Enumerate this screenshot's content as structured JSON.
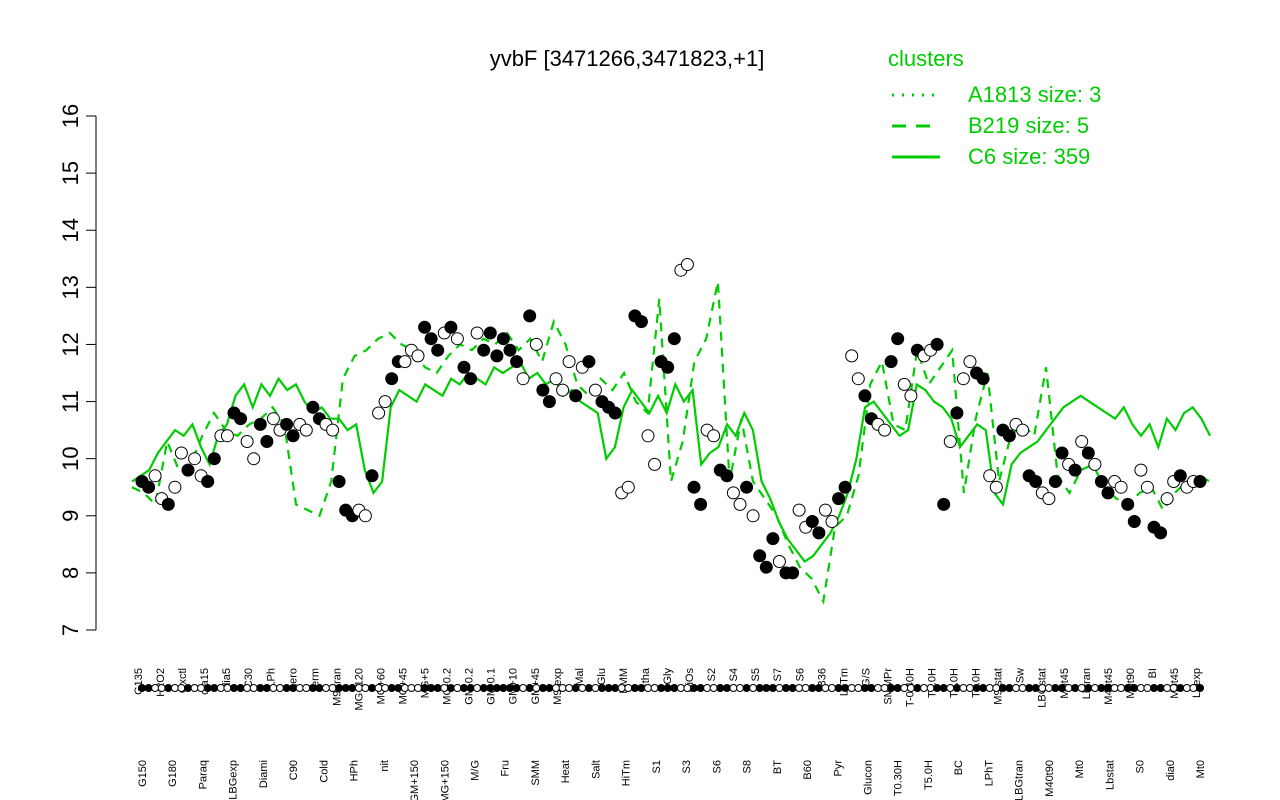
{
  "chart_data": {
    "type": "line",
    "title": "yvbF [3471266,3471823,+1]",
    "xlabel": "",
    "ylabel": "",
    "ylim": [
      7,
      16
    ],
    "yticks": [
      7,
      8,
      9,
      10,
      11,
      12,
      13,
      14,
      15,
      16
    ],
    "grid": false,
    "legend": {
      "title": "clusters",
      "placement": "top-right",
      "entries": [
        {
          "label": "A1813 size: 3",
          "style": "dotted"
        },
        {
          "label": "B219 size: 5",
          "style": "dashed"
        },
        {
          "label": "C6 size: 359",
          "style": "solid"
        }
      ]
    },
    "colors": {
      "line": "#00cc00",
      "point_fill_white": "#ffffff",
      "point_fill_black": "#000000",
      "axis": "#000000"
    },
    "xtick_labels_top": [
      "G135",
      "H2O2",
      "Oxctl",
      "dia15",
      "dia5",
      "C30",
      "LPh",
      "aero",
      "ferm",
      "M9-tran",
      "MG+120",
      "MG+60",
      "MG+45",
      "MG+5",
      "MG-0.2",
      "GM-0.2",
      "GM-0.1",
      "GM+10",
      "GM+45",
      "M9-exp",
      "Mal",
      "Glu",
      "BMM",
      "Etha",
      "Gly",
      "HiOs",
      "S2",
      "S4",
      "S5",
      "S7",
      "S6",
      "B36",
      "LoTm",
      "G/S",
      "SMMPr",
      "T-0.40H",
      "T1.0H",
      "T2.0H",
      "T4.0H",
      "M9-stat",
      "Sw",
      "LBGstat",
      "M0t45",
      "Lbtran",
      "M40t45",
      "M0t90",
      "BI",
      "M0t45",
      "Lbexp"
    ],
    "xtick_labels_bottom": [
      "G150",
      "G180",
      "Paraq",
      "LBGexp",
      "Diami",
      "C90",
      "Cold",
      "HPh",
      "nit",
      "GM+150",
      "MG+150",
      "M/G",
      "Fru",
      "SMM",
      "Heat",
      "Salt",
      "HiTm",
      "S1",
      "S3",
      "S6",
      "S8",
      "BT",
      "B60",
      "Pyr",
      "Glucon",
      "T0.30H",
      "T5.0H",
      "BC",
      "LPhT",
      "LBGtran",
      "M40t90",
      "Mt0",
      "Lbstat",
      "S0",
      "dia0",
      "Mt0"
    ],
    "series": [
      {
        "name": "C6 size: 359",
        "style": "solid",
        "values": [
          9.6,
          9.7,
          9.8,
          10.1,
          10.3,
          10.5,
          10.4,
          10.6,
          10.2,
          9.9,
          10.4,
          10.6,
          11.1,
          11.3,
          10.9,
          11.3,
          11.1,
          11.4,
          11.2,
          11.3,
          11.0,
          10.8,
          10.9,
          10.7,
          10.7,
          10.5,
          10.6,
          9.8,
          9.4,
          9.6,
          10.9,
          11.2,
          11.1,
          11.0,
          11.3,
          11.2,
          11.1,
          11.4,
          11.3,
          11.5,
          11.4,
          11.3,
          11.6,
          11.5,
          11.6,
          11.7,
          11.4,
          11.5,
          11.3,
          11.4,
          11.1,
          11.2,
          11.0,
          10.9,
          10.8,
          10.0,
          10.2,
          10.9,
          11.2,
          11.0,
          10.8,
          11.1,
          10.8,
          11.3,
          11.0,
          11.2,
          9.9,
          10.1,
          10.2,
          10.6,
          10.4,
          10.8,
          10.5,
          9.6,
          9.3,
          8.9,
          8.6,
          8.4,
          8.2,
          8.3,
          8.5,
          8.7,
          9.0,
          9.4,
          10.0,
          10.9,
          11.0,
          10.8,
          10.6,
          10.4,
          10.5,
          11.3,
          11.2,
          11.0,
          10.9,
          10.7,
          10.2,
          10.4,
          10.6,
          10.5,
          9.4,
          9.2,
          9.9,
          10.1,
          10.2,
          10.3,
          10.5,
          10.7,
          10.9,
          11.0,
          11.1,
          11.0,
          10.9,
          10.8,
          10.7,
          10.9,
          10.6,
          10.4,
          10.6,
          10.2,
          10.7,
          10.5,
          10.8,
          10.9,
          10.7,
          10.4
        ]
      },
      {
        "name": "B219 size: 5",
        "style": "dashed",
        "values": [
          9.5,
          9.4,
          9.2,
          10.3,
          9.8,
          9.9,
          10.4,
          10.8,
          10.5,
          10.4,
          10.6,
          10.7,
          10.9,
          10.6,
          9.2,
          9.1,
          9.0,
          9.6,
          11.4,
          11.8,
          11.9,
          12.1,
          12.2,
          12.0,
          11.9,
          11.6,
          11.5,
          11.8,
          12.0,
          11.9,
          12.1,
          12.0,
          12.2,
          11.9,
          12.1,
          11.7,
          12.4,
          12.0,
          11.3,
          11.1,
          11.4,
          11.2,
          11.5,
          11.0,
          10.8,
          12.8,
          9.6,
          10.3,
          11.7,
          12.1,
          13.1,
          9.6,
          10.7,
          9.6,
          9.3,
          9.0,
          8.5,
          8.1,
          7.9,
          7.5,
          8.8,
          9.0,
          9.7,
          11.3,
          11.7,
          10.6,
          10.5,
          11.9,
          11.3,
          11.6,
          11.9,
          9.4,
          10.7,
          11.5,
          9.6,
          10.4,
          10.6,
          10.4,
          11.6,
          9.7,
          9.4,
          9.8,
          9.9,
          9.5,
          9.3,
          9.2,
          9.4,
          9.5,
          9.1,
          9.4,
          9.6,
          9.7,
          9.6
        ]
      }
    ],
    "points": [
      {
        "label": "G150",
        "y": 9.6,
        "fill": "black"
      },
      {
        "label": "G150",
        "y": 9.5,
        "fill": "black"
      },
      {
        "label": "G135",
        "y": 9.7,
        "fill": "white"
      },
      {
        "label": "G135",
        "y": 9.3,
        "fill": "white"
      },
      {
        "label": "G180",
        "y": 9.2,
        "fill": "black"
      },
      {
        "label": "G180",
        "y": 9.5,
        "fill": "white"
      },
      {
        "label": "H2O2",
        "y": 10.1,
        "fill": "white"
      },
      {
        "label": "Paraq",
        "y": 9.8,
        "fill": "black"
      },
      {
        "label": "Paraq",
        "y": 10.0,
        "fill": "white"
      },
      {
        "label": "Oxctl",
        "y": 9.7,
        "fill": "white"
      },
      {
        "label": "LBGexp",
        "y": 9.6,
        "fill": "black"
      },
      {
        "label": "LBGexp",
        "y": 10.0,
        "fill": "black"
      },
      {
        "label": "dia15",
        "y": 10.4,
        "fill": "white"
      },
      {
        "label": "dia15",
        "y": 10.4,
        "fill": "white"
      },
      {
        "label": "Diami",
        "y": 10.8,
        "fill": "black"
      },
      {
        "label": "Diami",
        "y": 10.7,
        "fill": "black"
      },
      {
        "label": "dia5",
        "y": 10.3,
        "fill": "white"
      },
      {
        "label": "dia5",
        "y": 10.0,
        "fill": "white"
      },
      {
        "label": "C90",
        "y": 10.6,
        "fill": "black"
      },
      {
        "label": "C90",
        "y": 10.3,
        "fill": "black"
      },
      {
        "label": "C30",
        "y": 10.7,
        "fill": "white"
      },
      {
        "label": "C30",
        "y": 10.5,
        "fill": "white"
      },
      {
        "label": "Cold",
        "y": 10.6,
        "fill": "black"
      },
      {
        "label": "Cold",
        "y": 10.4,
        "fill": "black"
      },
      {
        "label": "LPh",
        "y": 10.6,
        "fill": "white"
      },
      {
        "label": "LPh",
        "y": 10.5,
        "fill": "white"
      },
      {
        "label": "HPh",
        "y": 10.9,
        "fill": "black"
      },
      {
        "label": "HPh",
        "y": 10.7,
        "fill": "black"
      },
      {
        "label": "aero",
        "y": 10.6,
        "fill": "white"
      },
      {
        "label": "aero",
        "y": 10.5,
        "fill": "white"
      },
      {
        "label": "nit",
        "y": 9.6,
        "fill": "black"
      },
      {
        "label": "nit",
        "y": 9.1,
        "fill": "black"
      },
      {
        "label": "ferm",
        "y": 9.0,
        "fill": "black"
      },
      {
        "label": "ferm",
        "y": 9.1,
        "fill": "white"
      },
      {
        "label": "ferm",
        "y": 9.0,
        "fill": "white"
      },
      {
        "label": "GM+150",
        "y": 9.7,
        "fill": "black"
      },
      {
        "label": "M9-tran",
        "y": 10.8,
        "fill": "white"
      },
      {
        "label": "M9-tran",
        "y": 11.0,
        "fill": "white"
      },
      {
        "label": "MG+150",
        "y": 11.4,
        "fill": "black"
      },
      {
        "label": "MG+150",
        "y": 11.7,
        "fill": "black"
      },
      {
        "label": "MG+120",
        "y": 11.7,
        "fill": "white"
      },
      {
        "label": "MG+120",
        "y": 11.9,
        "fill": "white"
      },
      {
        "label": "MG+60",
        "y": 11.8,
        "fill": "white"
      },
      {
        "label": "MG+60",
        "y": 12.3,
        "fill": "black"
      },
      {
        "label": "MG+45",
        "y": 12.1,
        "fill": "black"
      },
      {
        "label": "MG+45",
        "y": 11.9,
        "fill": "black"
      },
      {
        "label": "MG+5",
        "y": 12.2,
        "fill": "white"
      },
      {
        "label": "MG+5",
        "y": 12.3,
        "fill": "black"
      },
      {
        "label": "MG-0.2",
        "y": 12.1,
        "fill": "white"
      },
      {
        "label": "MG-0.2",
        "y": 11.6,
        "fill": "black"
      },
      {
        "label": "M/G",
        "y": 11.4,
        "fill": "black"
      },
      {
        "label": "GM-0.2",
        "y": 12.2,
        "fill": "white"
      },
      {
        "label": "GM-0.2",
        "y": 11.9,
        "fill": "black"
      },
      {
        "label": "GM-0.1",
        "y": 12.2,
        "fill": "black"
      },
      {
        "label": "GM-0.1",
        "y": 11.8,
        "fill": "black"
      },
      {
        "label": "GM+10",
        "y": 12.1,
        "fill": "black"
      },
      {
        "label": "GM+10",
        "y": 11.9,
        "fill": "black"
      },
      {
        "label": "GM+45",
        "y": 11.7,
        "fill": "black"
      },
      {
        "label": "GM+45",
        "y": 11.4,
        "fill": "white"
      },
      {
        "label": "M9-exp",
        "y": 12.5,
        "fill": "black"
      },
      {
        "label": "M9-exp",
        "y": 12.0,
        "fill": "white"
      },
      {
        "label": "M/G",
        "y": 11.2,
        "fill": "black"
      },
      {
        "label": "M/G",
        "y": 11.0,
        "fill": "black"
      },
      {
        "label": "Mal",
        "y": 11.4,
        "fill": "white"
      },
      {
        "label": "Mal",
        "y": 11.2,
        "fill": "white"
      },
      {
        "label": "Fru",
        "y": 11.7,
        "fill": "white"
      },
      {
        "label": "Fru",
        "y": 11.1,
        "fill": "black"
      },
      {
        "label": "Glu",
        "y": 11.6,
        "fill": "white"
      },
      {
        "label": "SMM",
        "y": 11.7,
        "fill": "black"
      },
      {
        "label": "BMM",
        "y": 11.2,
        "fill": "white"
      },
      {
        "label": "BMM",
        "y": 11.0,
        "fill": "black"
      },
      {
        "label": "Heat",
        "y": 10.9,
        "fill": "black"
      },
      {
        "label": "Heat",
        "y": 10.8,
        "fill": "black"
      },
      {
        "label": "Etha",
        "y": 9.4,
        "fill": "white"
      },
      {
        "label": "Etha",
        "y": 9.5,
        "fill": "white"
      },
      {
        "label": "Salt",
        "y": 12.5,
        "fill": "black"
      },
      {
        "label": "Salt",
        "y": 12.4,
        "fill": "black"
      },
      {
        "label": "Gly",
        "y": 10.4,
        "fill": "white"
      },
      {
        "label": "Gly",
        "y": 9.9,
        "fill": "white"
      },
      {
        "label": "HiTm",
        "y": 11.7,
        "fill": "black"
      },
      {
        "label": "HiTm",
        "y": 11.6,
        "fill": "black"
      },
      {
        "label": "HiOs",
        "y": 12.1,
        "fill": "black"
      },
      {
        "label": "HiOs",
        "y": 13.3,
        "fill": "white"
      },
      {
        "label": "HiOs",
        "y": 13.4,
        "fill": "white"
      },
      {
        "label": "S1",
        "y": 9.5,
        "fill": "black"
      },
      {
        "label": "S1",
        "y": 9.2,
        "fill": "black"
      },
      {
        "label": "S2",
        "y": 10.5,
        "fill": "white"
      },
      {
        "label": "S2",
        "y": 10.4,
        "fill": "white"
      },
      {
        "label": "S3",
        "y": 9.8,
        "fill": "black"
      },
      {
        "label": "S3",
        "y": 9.7,
        "fill": "black"
      },
      {
        "label": "S4",
        "y": 9.4,
        "fill": "white"
      },
      {
        "label": "S4",
        "y": 9.2,
        "fill": "white"
      },
      {
        "label": "S5",
        "y": 9.5,
        "fill": "black"
      },
      {
        "label": "S5",
        "y": 9.0,
        "fill": "white"
      },
      {
        "label": "S6",
        "y": 8.3,
        "fill": "black"
      },
      {
        "label": "S6",
        "y": 8.1,
        "fill": "black"
      },
      {
        "label": "S7",
        "y": 8.6,
        "fill": "black"
      },
      {
        "label": "S7",
        "y": 8.2,
        "fill": "white"
      },
      {
        "label": "S8",
        "y": 8.0,
        "fill": "black"
      },
      {
        "label": "S8",
        "y": 8.0,
        "fill": "black"
      },
      {
        "label": "S6",
        "y": 9.1,
        "fill": "white"
      },
      {
        "label": "S6",
        "y": 8.8,
        "fill": "white"
      },
      {
        "label": "BT",
        "y": 8.9,
        "fill": "black"
      },
      {
        "label": "BT",
        "y": 8.7,
        "fill": "black"
      },
      {
        "label": "B36",
        "y": 9.1,
        "fill": "white"
      },
      {
        "label": "B36",
        "y": 8.9,
        "fill": "white"
      },
      {
        "label": "B60",
        "y": 9.3,
        "fill": "black"
      },
      {
        "label": "B60",
        "y": 9.5,
        "fill": "black"
      },
      {
        "label": "LoTm",
        "y": 11.8,
        "fill": "white"
      },
      {
        "label": "LoTm",
        "y": 11.4,
        "fill": "white"
      },
      {
        "label": "Pyr",
        "y": 11.1,
        "fill": "black"
      },
      {
        "label": "Pyr",
        "y": 10.7,
        "fill": "black"
      },
      {
        "label": "G/S",
        "y": 10.6,
        "fill": "white"
      },
      {
        "label": "G/S",
        "y": 10.5,
        "fill": "white"
      },
      {
        "label": "Glucon",
        "y": 11.7,
        "fill": "black"
      },
      {
        "label": "Glucon",
        "y": 12.1,
        "fill": "black"
      },
      {
        "label": "SMMPr",
        "y": 11.3,
        "fill": "white"
      },
      {
        "label": "SMMPr",
        "y": 11.1,
        "fill": "white"
      },
      {
        "label": "T-0.40H",
        "y": 11.9,
        "fill": "black"
      },
      {
        "label": "T-0.40H",
        "y": 11.8,
        "fill": "white"
      },
      {
        "label": "T1.0H",
        "y": 11.9,
        "fill": "white"
      },
      {
        "label": "T1.0H",
        "y": 12.0,
        "fill": "black"
      },
      {
        "label": "T0.30H",
        "y": 9.2,
        "fill": "black"
      },
      {
        "label": "T0.30H",
        "y": 10.3,
        "fill": "white"
      },
      {
        "label": "T2.0H",
        "y": 10.8,
        "fill": "black"
      },
      {
        "label": "T2.0H",
        "y": 11.4,
        "fill": "white"
      },
      {
        "label": "T4.0H",
        "y": 11.7,
        "fill": "white"
      },
      {
        "label": "T5.0H",
        "y": 11.5,
        "fill": "black"
      },
      {
        "label": "T5.0H",
        "y": 11.4,
        "fill": "black"
      },
      {
        "label": "M9-stat",
        "y": 9.7,
        "fill": "white"
      },
      {
        "label": "M9-stat",
        "y": 9.5,
        "fill": "white"
      },
      {
        "label": "BC",
        "y": 10.5,
        "fill": "black"
      },
      {
        "label": "BC",
        "y": 10.4,
        "fill": "black"
      },
      {
        "label": "Sw",
        "y": 10.6,
        "fill": "white"
      },
      {
        "label": "Sw",
        "y": 10.5,
        "fill": "white"
      },
      {
        "label": "LPhT",
        "y": 9.7,
        "fill": "black"
      },
      {
        "label": "LPhT",
        "y": 9.6,
        "fill": "black"
      },
      {
        "label": "LBGstat",
        "y": 9.4,
        "fill": "white"
      },
      {
        "label": "LBGstat",
        "y": 9.3,
        "fill": "white"
      },
      {
        "label": "LBGtran",
        "y": 9.6,
        "fill": "black"
      },
      {
        "label": "LBGtran",
        "y": 10.1,
        "fill": "black"
      },
      {
        "label": "M0t45",
        "y": 9.9,
        "fill": "white"
      },
      {
        "label": "M0t45",
        "y": 9.8,
        "fill": "black"
      },
      {
        "label": "Lbtran",
        "y": 10.3,
        "fill": "white"
      },
      {
        "label": "Lbtran",
        "y": 10.1,
        "fill": "black"
      },
      {
        "label": "M40t45",
        "y": 9.9,
        "fill": "white"
      },
      {
        "label": "M40t90",
        "y": 9.6,
        "fill": "black"
      },
      {
        "label": "M40t90",
        "y": 9.4,
        "fill": "black"
      },
      {
        "label": "M0t90",
        "y": 9.6,
        "fill": "white"
      },
      {
        "label": "M0t90",
        "y": 9.5,
        "fill": "white"
      },
      {
        "label": "Lbstat",
        "y": 9.2,
        "fill": "black"
      },
      {
        "label": "Lbstat",
        "y": 8.9,
        "fill": "black"
      },
      {
        "label": "BI",
        "y": 9.8,
        "fill": "white"
      },
      {
        "label": "BI",
        "y": 9.5,
        "fill": "white"
      },
      {
        "label": "S0",
        "y": 8.8,
        "fill": "black"
      },
      {
        "label": "S0",
        "y": 8.7,
        "fill": "black"
      },
      {
        "label": "dia0",
        "y": 9.3,
        "fill": "white"
      },
      {
        "label": "dia0",
        "y": 9.6,
        "fill": "white"
      },
      {
        "label": "M0t45",
        "y": 9.7,
        "fill": "black"
      },
      {
        "label": "M0t45",
        "y": 9.5,
        "fill": "white"
      },
      {
        "label": "Lbexp",
        "y": 9.6,
        "fill": "white"
      },
      {
        "label": "Lbexp",
        "y": 9.6,
        "fill": "black"
      }
    ]
  }
}
